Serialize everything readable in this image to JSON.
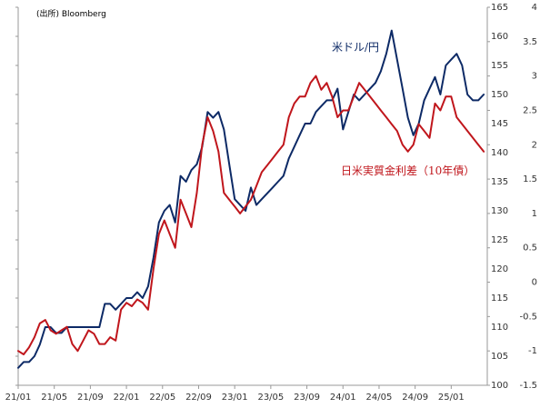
{
  "source_note": "(出所) Bloomberg",
  "chart_data": {
    "type": "line",
    "x_tick_labels": [
      "21/01",
      "21/05",
      "21/09",
      "22/01",
      "22/05",
      "22/09",
      "23/01",
      "23/05",
      "23/09",
      "24/01",
      "24/05",
      "24/09",
      "25/01"
    ],
    "y_left": {
      "ylim": [
        100,
        165
      ],
      "ticks": [
        100,
        105,
        110,
        115,
        120,
        125,
        130,
        135,
        140,
        145,
        150,
        155,
        160,
        165
      ]
    },
    "y_right": {
      "ylim": [
        -1.5,
        4
      ],
      "ticks": [
        "-1.5",
        "-1",
        "-0.5",
        "0",
        "0.5",
        "1",
        "1.5",
        "2",
        "2.5",
        "3",
        "3.5",
        "4"
      ]
    },
    "series": [
      {
        "name": "米ドル/円",
        "axis": "left",
        "color": "#0d2a66",
        "x": [
          2021.0,
          2021.05,
          2021.1,
          2021.15,
          2021.2,
          2021.25,
          2021.3,
          2021.35,
          2021.4,
          2021.45,
          2021.5,
          2021.55,
          2021.6,
          2021.65,
          2021.7,
          2021.75,
          2021.8,
          2021.85,
          2021.9,
          2021.95,
          2022.0,
          2022.05,
          2022.1,
          2022.15,
          2022.2,
          2022.25,
          2022.3,
          2022.35,
          2022.4,
          2022.45,
          2022.5,
          2022.55,
          2022.6,
          2022.65,
          2022.7,
          2022.75,
          2022.8,
          2022.85,
          2022.9,
          2022.95,
          2023.0,
          2023.05,
          2023.1,
          2023.15,
          2023.2,
          2023.25,
          2023.3,
          2023.35,
          2023.4,
          2023.45,
          2023.5,
          2023.55,
          2023.6,
          2023.65,
          2023.7,
          2023.75,
          2023.8,
          2023.85,
          2023.9,
          2023.95,
          2024.0,
          2024.05,
          2024.1,
          2024.15,
          2024.2,
          2024.25,
          2024.3,
          2024.35,
          2024.4,
          2024.45,
          2024.5,
          2024.55,
          2024.6,
          2024.65,
          2024.7,
          2024.75,
          2024.8,
          2024.85,
          2024.9,
          2024.95,
          2025.0,
          2025.05,
          2025.1,
          2025.15,
          2025.2,
          2025.25,
          2025.3
        ],
        "values": [
          103,
          104,
          104,
          105,
          107,
          110,
          110,
          109,
          109,
          110,
          110,
          110,
          110,
          110,
          110,
          110,
          114,
          114,
          113,
          114,
          115,
          115,
          116,
          115,
          117,
          122,
          128,
          130,
          131,
          128,
          136,
          135,
          137,
          138,
          141,
          147,
          146,
          147,
          144,
          138,
          132,
          131,
          130,
          134,
          131,
          132,
          133,
          134,
          135,
          136,
          139,
          141,
          143,
          145,
          145,
          147,
          148,
          149,
          149,
          151,
          144,
          147,
          150,
          149,
          150,
          151,
          152,
          154,
          157,
          161,
          156,
          151,
          146,
          143,
          145,
          149,
          151,
          153,
          150,
          155,
          156,
          157,
          155,
          150,
          149,
          149,
          150
        ]
      },
      {
        "name": "日米実質金利差（10年債）",
        "axis": "right",
        "color": "#c0161c",
        "x": [
          2021.0,
          2021.05,
          2021.1,
          2021.15,
          2021.2,
          2021.25,
          2021.3,
          2021.35,
          2021.4,
          2021.45,
          2021.5,
          2021.55,
          2021.6,
          2021.65,
          2021.7,
          2021.75,
          2021.8,
          2021.85,
          2021.9,
          2021.95,
          2022.0,
          2022.05,
          2022.1,
          2022.15,
          2022.2,
          2022.25,
          2022.3,
          2022.35,
          2022.4,
          2022.45,
          2022.5,
          2022.55,
          2022.6,
          2022.65,
          2022.7,
          2022.75,
          2022.8,
          2022.85,
          2022.9,
          2022.95,
          2023.0,
          2023.05,
          2023.1,
          2023.15,
          2023.2,
          2023.25,
          2023.3,
          2023.35,
          2023.4,
          2023.45,
          2023.5,
          2023.55,
          2023.6,
          2023.65,
          2023.7,
          2023.75,
          2023.8,
          2023.85,
          2023.9,
          2023.95,
          2024.0,
          2024.05,
          2024.1,
          2024.15,
          2024.2,
          2024.25,
          2024.3,
          2024.35,
          2024.4,
          2024.45,
          2024.5,
          2024.55,
          2024.6,
          2024.65,
          2024.7,
          2024.75,
          2024.8,
          2024.85,
          2024.9,
          2024.95,
          2025.0,
          2025.05,
          2025.1,
          2025.15,
          2025.2,
          2025.25,
          2025.3
        ],
        "values": [
          -1.0,
          -1.05,
          -0.95,
          -0.8,
          -0.6,
          -0.55,
          -0.7,
          -0.75,
          -0.7,
          -0.65,
          -0.9,
          -1.0,
          -0.85,
          -0.7,
          -0.75,
          -0.9,
          -0.9,
          -0.8,
          -0.85,
          -0.4,
          -0.3,
          -0.35,
          -0.25,
          -0.3,
          -0.4,
          0.2,
          0.7,
          0.9,
          0.7,
          0.5,
          1.2,
          1.0,
          0.8,
          1.3,
          2.0,
          2.4,
          2.2,
          1.9,
          1.3,
          1.2,
          1.1,
          1.0,
          1.1,
          1.2,
          1.4,
          1.6,
          1.7,
          1.8,
          1.9,
          2.0,
          2.4,
          2.6,
          2.7,
          2.7,
          2.9,
          3.0,
          2.8,
          2.9,
          2.7,
          2.4,
          2.5,
          2.5,
          2.7,
          2.9,
          2.8,
          2.7,
          2.6,
          2.5,
          2.4,
          2.3,
          2.2,
          2.0,
          1.9,
          2.0,
          2.3,
          2.2,
          2.1,
          2.6,
          2.5,
          2.7,
          2.7,
          2.4,
          2.3,
          2.2,
          2.1,
          2.0,
          1.9
        ]
      }
    ],
    "grid": false,
    "legend": "inline labels",
    "title": "",
    "xlabel": "",
    "ylabel": ""
  },
  "labels": {
    "usdjpy": "米ドル/円",
    "spread": "日米実質金利差（10年債）"
  }
}
